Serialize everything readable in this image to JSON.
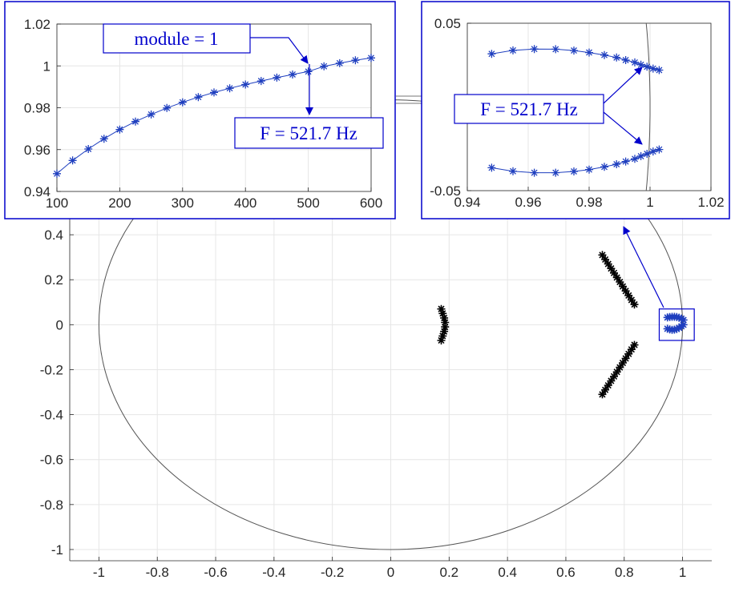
{
  "colors": {
    "annotation": "#0000cc",
    "main_series": "#000000",
    "highlight_series": "#1f3fbf",
    "unit_circle": "#555555",
    "grid": "#e6e6e6",
    "axes": "#262626"
  },
  "chart_data": [
    {
      "id": "main",
      "type": "scatter",
      "title": "",
      "xlabel": "",
      "ylabel": "",
      "xlim": [
        -1.1,
        1.1
      ],
      "ylim": [
        -1.05,
        0.5
      ],
      "xticks": [
        -1,
        -0.8,
        -0.6,
        -0.4,
        -0.2,
        0,
        0.2,
        0.4,
        0.6,
        0.8,
        1
      ],
      "yticks": [
        -1,
        -0.8,
        -0.6,
        -0.4,
        -0.2,
        0,
        0.2,
        0.4
      ],
      "xtick_labels": [
        "-1",
        "-0.8",
        "-0.6",
        "-0.4",
        "-0.2",
        "0",
        "0.2",
        "0.4",
        "0.6",
        "0.8",
        "1"
      ],
      "ytick_labels": [
        "-1",
        "-0.8",
        "-0.6",
        "-0.4",
        "-0.2",
        "0",
        "0.2",
        "0.4"
      ],
      "grid": true,
      "reference_curve": "unit circle",
      "series": [
        {
          "marker": "*",
          "color": "#000000",
          "points": [
            [
              0.173,
              0.07
            ],
            [
              0.178,
              0.05
            ],
            [
              0.183,
              0.03
            ],
            [
              0.186,
              0.01
            ],
            [
              0.186,
              -0.01
            ],
            [
              0.183,
              -0.03
            ],
            [
              0.178,
              -0.05
            ],
            [
              0.173,
              -0.07
            ]
          ]
        },
        {
          "marker": "*",
          "color": "#000000",
          "points": [
            [
              0.725,
              0.31
            ],
            [
              0.735,
              0.29
            ],
            [
              0.745,
              0.27
            ],
            [
              0.755,
              0.25
            ],
            [
              0.765,
              0.23
            ],
            [
              0.775,
              0.21
            ],
            [
              0.785,
              0.19
            ],
            [
              0.795,
              0.17
            ],
            [
              0.805,
              0.15
            ],
            [
              0.815,
              0.13
            ],
            [
              0.825,
              0.11
            ],
            [
              0.835,
              0.09
            ]
          ]
        },
        {
          "marker": "*",
          "color": "#000000",
          "points": [
            [
              0.725,
              -0.31
            ],
            [
              0.735,
              -0.29
            ],
            [
              0.745,
              -0.27
            ],
            [
              0.755,
              -0.25
            ],
            [
              0.765,
              -0.23
            ],
            [
              0.775,
              -0.21
            ],
            [
              0.785,
              -0.19
            ],
            [
              0.795,
              -0.17
            ],
            [
              0.805,
              -0.15
            ],
            [
              0.815,
              -0.13
            ],
            [
              0.825,
              -0.11
            ],
            [
              0.835,
              -0.09
            ]
          ]
        },
        {
          "marker": "*",
          "color": "#1f3fbf",
          "points": [
            [
              0.948,
              0.032
            ],
            [
              0.956,
              0.034
            ],
            [
              0.964,
              0.035
            ],
            [
              0.972,
              0.035
            ],
            [
              0.98,
              0.034
            ],
            [
              0.988,
              0.031
            ],
            [
              0.996,
              0.027
            ],
            [
              1.003,
              0.021
            ],
            [
              0.948,
              -0.018
            ],
            [
              0.956,
              -0.021
            ],
            [
              0.964,
              -0.023
            ],
            [
              0.972,
              -0.022
            ],
            [
              0.98,
              -0.019
            ],
            [
              0.988,
              -0.014
            ],
            [
              0.996,
              -0.007
            ],
            [
              1.003,
              0.0
            ]
          ]
        }
      ],
      "zoom_box": {
        "x": [
          0.92,
          1.04
        ],
        "y": [
          -0.07,
          0.07
        ]
      }
    },
    {
      "id": "inset_magnitude",
      "type": "line",
      "title": "",
      "xlabel": "",
      "ylabel": "",
      "xlim": [
        100,
        600
      ],
      "ylim": [
        0.94,
        1.02
      ],
      "xticks": [
        100,
        200,
        300,
        400,
        500,
        600
      ],
      "yticks": [
        0.94,
        0.96,
        0.98,
        1,
        1.02
      ],
      "xtick_labels": [
        "100",
        "200",
        "300",
        "400",
        "500",
        "600"
      ],
      "ytick_labels": [
        "0.94",
        "0.96",
        "0.98",
        "1",
        "1.02"
      ],
      "grid": true,
      "series": [
        {
          "marker": "*",
          "color": "#1f3fbf",
          "x": [
            100,
            125,
            150,
            175,
            200,
            225,
            250,
            275,
            300,
            325,
            350,
            375,
            400,
            425,
            450,
            475,
            500,
            525,
            550,
            575,
            600
          ],
          "y": [
            0.9485,
            0.9548,
            0.9603,
            0.9652,
            0.9696,
            0.9734,
            0.9768,
            0.9799,
            0.9826,
            0.9851,
            0.9873,
            0.9893,
            0.9911,
            0.9928,
            0.9944,
            0.9959,
            0.9973,
            0.9998,
            1.0013,
            1.0027,
            1.0038
          ]
        }
      ]
    },
    {
      "id": "inset_zoom",
      "type": "scatter",
      "title": "",
      "xlabel": "",
      "ylabel": "",
      "xlim": [
        0.94,
        1.02
      ],
      "ylim": [
        -0.05,
        0.05
      ],
      "xticks": [
        0.94,
        0.96,
        0.98,
        1,
        1.02
      ],
      "yticks": [
        -0.05,
        0.05
      ],
      "xtick_labels": [
        "0.94",
        "0.96",
        "0.98",
        "1",
        "1.02"
      ],
      "ytick_labels": [
        "-0.05",
        "0.05"
      ],
      "grid": true,
      "reference_curve": "unit circle",
      "series": [
        {
          "marker": "*",
          "color": "#1f3fbf",
          "x": [
            0.948,
            0.955,
            0.962,
            0.969,
            0.975,
            0.98,
            0.985,
            0.989,
            0.992,
            0.995,
            0.997,
            0.999,
            1.001,
            1.003
          ],
          "y": [
            0.0317,
            0.0338,
            0.0346,
            0.0345,
            0.0337,
            0.0325,
            0.031,
            0.0295,
            0.028,
            0.0266,
            0.0252,
            0.024,
            0.0229,
            0.022
          ]
        },
        {
          "marker": "*",
          "color": "#1f3fbf",
          "x": [
            0.948,
            0.955,
            0.962,
            0.969,
            0.975,
            0.98,
            0.985,
            0.989,
            0.992,
            0.995,
            0.997,
            0.999,
            1.001,
            1.003
          ],
          "y": [
            -0.0363,
            -0.0384,
            -0.0393,
            -0.0393,
            -0.0385,
            -0.0374,
            -0.0358,
            -0.0342,
            -0.0326,
            -0.031,
            -0.0294,
            -0.028,
            -0.0266,
            -0.0254
          ]
        }
      ]
    }
  ],
  "annotations": {
    "module": "module = 1",
    "freq_left": "F = 521.7 Hz",
    "freq_right": "F = 521.7 Hz"
  }
}
